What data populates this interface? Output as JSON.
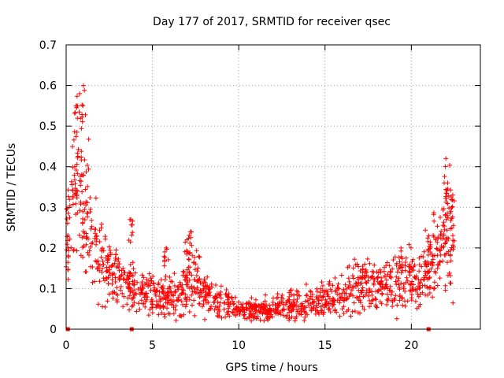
{
  "chart_data": {
    "type": "scatter",
    "title": "Day 177 of 2017, SRMTID for receiver qsec",
    "xlabel": "GPS time / hours",
    "ylabel": "SRMTID / TECUs",
    "xlim": [
      0,
      24
    ],
    "ylim": [
      0,
      0.7
    ],
    "x_ticks": [
      0,
      5,
      10,
      15,
      20
    ],
    "y_ticks": [
      0,
      0.1,
      0.2,
      0.3,
      0.4,
      0.5,
      0.6,
      0.7
    ],
    "grid": true,
    "marker": "+",
    "series_color": "#ff0000",
    "baseline_markers_x": [
      0.1,
      3.8,
      21.0
    ],
    "series": [
      {
        "name": "qsec",
        "envelope_x": [
          0,
          0.3,
          0.7,
          1.0,
          1.5,
          2.0,
          2.5,
          3.0,
          3.5,
          4.0,
          5.0,
          6.0,
          7.0,
          7.5,
          8.0,
          9.0,
          10.0,
          11.0,
          12.0,
          13.0,
          14.0,
          15.0,
          16.0,
          17.0,
          18.0,
          19.0,
          20.0,
          20.5,
          21.0,
          21.5,
          22.0,
          22.5
        ],
        "envelope_y": [
          0.2,
          0.3,
          0.38,
          0.32,
          0.22,
          0.17,
          0.14,
          0.12,
          0.1,
          0.09,
          0.085,
          0.08,
          0.1,
          0.12,
          0.09,
          0.065,
          0.045,
          0.045,
          0.055,
          0.06,
          0.065,
          0.07,
          0.085,
          0.1,
          0.105,
          0.115,
          0.12,
          0.12,
          0.15,
          0.2,
          0.22,
          0.25
        ],
        "peaks": [
          {
            "x": 0.6,
            "y": 0.55
          },
          {
            "x": 1.0,
            "y": 0.6
          },
          {
            "x": 0.5,
            "y": 0.4
          },
          {
            "x": 0.9,
            "y": 0.38
          },
          {
            "x": 3.75,
            "y": 0.27
          },
          {
            "x": 7.2,
            "y": 0.24
          },
          {
            "x": 7.0,
            "y": 0.22
          },
          {
            "x": 5.8,
            "y": 0.2
          },
          {
            "x": 22.0,
            "y": 0.42
          },
          {
            "x": 22.1,
            "y": 0.36
          },
          {
            "x": 22.4,
            "y": 0.33
          },
          {
            "x": 17.3,
            "y": 0.16
          },
          {
            "x": 19.4,
            "y": 0.2
          },
          {
            "x": 21.0,
            "y": 0.23
          }
        ]
      }
    ]
  }
}
